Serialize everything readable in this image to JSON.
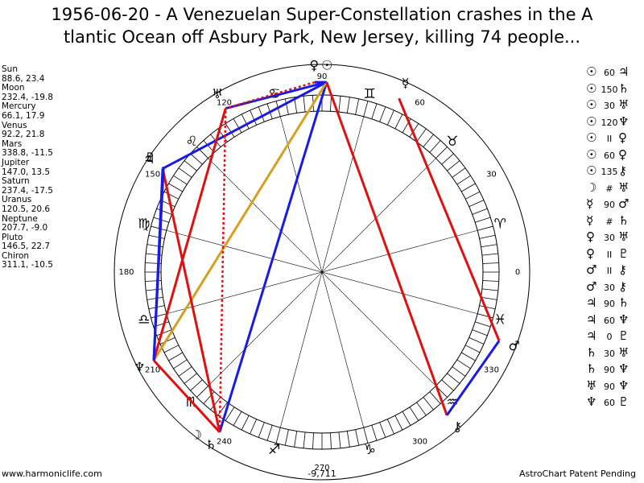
{
  "header": {
    "title_lines": [
      "1956-06-20 - A Venezuelan Super-Constellation crashes in the A",
      "tlantic Ocean off Asbury Park, New Jersey, killing 74 people..."
    ]
  },
  "planets": [
    {
      "name": "Sun",
      "glyph": "☉",
      "position": "88.6, 23.4"
    },
    {
      "name": "Moon",
      "glyph": "☽",
      "position": "232.4, -19.8"
    },
    {
      "name": "Mercury",
      "glyph": "☿",
      "position": "66.1, 17.9"
    },
    {
      "name": "Venus",
      "glyph": "♀",
      "position": "92.2, 21.8"
    },
    {
      "name": "Mars",
      "glyph": "♂",
      "position": "338.8, -11.5"
    },
    {
      "name": "Jupiter",
      "glyph": "♃",
      "position": "147.0, 13.5"
    },
    {
      "name": "Saturn",
      "glyph": "♄",
      "position": "237.4, -17.5"
    },
    {
      "name": "Uranus",
      "glyph": "♅",
      "position": "120.5, 20.6"
    },
    {
      "name": "Neptune",
      "glyph": "♆",
      "position": "207.7, -9.0"
    },
    {
      "name": "Pluto",
      "glyph": "♇",
      "position": "146.5, 22.7"
    },
    {
      "name": "Chiron",
      "glyph": "⚷",
      "position": "311.1, -10.5"
    }
  ],
  "signs": [
    "♈",
    "♉",
    "♊",
    "♋",
    "♌",
    "♍",
    "♎",
    "♏",
    "♐",
    "♑",
    "♒",
    "♓"
  ],
  "degree_labels": [
    0,
    30,
    60,
    90,
    120,
    150,
    180,
    210,
    240,
    270,
    300,
    330
  ],
  "aspects": [
    {
      "from": "☉",
      "aspect": "60",
      "to": "♃",
      "color": "#1a1ae6",
      "dashed": false
    },
    {
      "from": "☉",
      "aspect": "150",
      "to": "♄",
      "color": "#1a1ae6",
      "dashed": false
    },
    {
      "from": "☉",
      "aspect": "30",
      "to": "♅",
      "color": "#1a1ae6",
      "dashed": false
    },
    {
      "from": "☉",
      "aspect": "120",
      "to": "♆",
      "color": "#d4a020",
      "dashed": false
    },
    {
      "from": "☉",
      "aspect": "II",
      "to": "♀",
      "color": null,
      "dashed": false
    },
    {
      "from": "☉",
      "aspect": "60",
      "to": "♀",
      "color": "#1a1ae6",
      "dashed": false
    },
    {
      "from": "☉",
      "aspect": "135",
      "to": "⚷",
      "color": "#e01010",
      "dashed": false
    },
    {
      "from": "☽",
      "aspect": "#",
      "to": "♅",
      "color": null,
      "dashed": false
    },
    {
      "from": "☿",
      "aspect": "90",
      "to": "♂",
      "color": "#e01010",
      "dashed": false
    },
    {
      "from": "☿",
      "aspect": "#",
      "to": "♄",
      "color": null,
      "dashed": false
    },
    {
      "from": "♀",
      "aspect": "30",
      "to": "♅",
      "color": "#e01010",
      "dashed": true
    },
    {
      "from": "♀",
      "aspect": "II",
      "to": "♇",
      "color": null,
      "dashed": false
    },
    {
      "from": "♂",
      "aspect": "II",
      "to": "⚷",
      "color": null,
      "dashed": false
    },
    {
      "from": "♂",
      "aspect": "30",
      "to": "⚷",
      "color": "#1a1ae6",
      "dashed": false
    },
    {
      "from": "♃",
      "aspect": "90",
      "to": "♄",
      "color": "#e01010",
      "dashed": false
    },
    {
      "from": "♃",
      "aspect": "60",
      "to": "♆",
      "color": "#1a1ae6",
      "dashed": false
    },
    {
      "from": "♃",
      "aspect": "0",
      "to": "♇",
      "color": "#1a1ae6",
      "dashed": false
    },
    {
      "from": "♄",
      "aspect": "30",
      "to": "♅",
      "color": "#e01010",
      "dashed": true
    },
    {
      "from": "♄",
      "aspect": "90",
      "to": "♆",
      "color": "#e01010",
      "dashed": false
    },
    {
      "from": "♅",
      "aspect": "90",
      "to": "♆",
      "color": "#e01010",
      "dashed": false
    },
    {
      "from": "♆",
      "aspect": "60",
      "to": "♇",
      "color": "#1a1ae6",
      "dashed": false
    }
  ],
  "footer": {
    "left": "www.harmoniclife.com",
    "center": "-9,711",
    "right": "AstroChart Patent Pending"
  }
}
